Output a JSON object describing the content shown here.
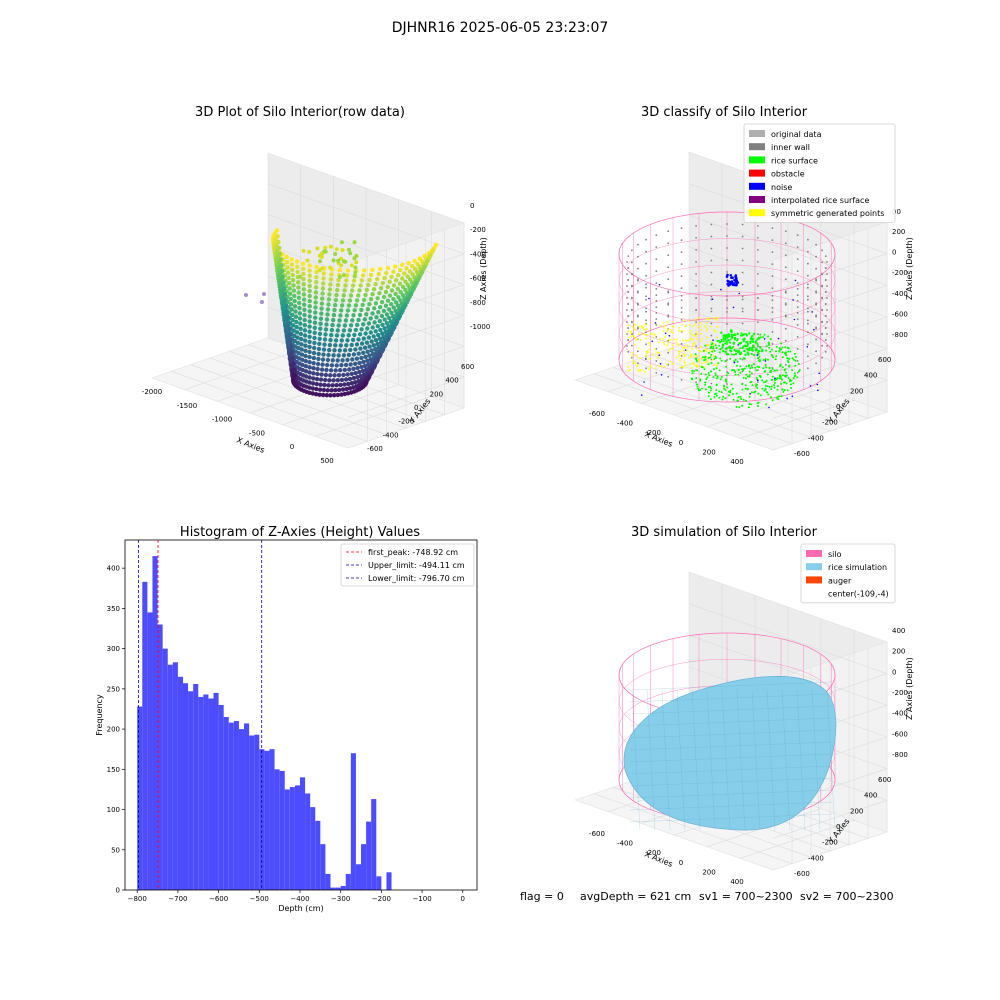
{
  "suptitle": "DJHNR16 2025-06-05 23:23:07",
  "footer": {
    "flag": "flag = 0",
    "avg_depth": "avgDepth = 621 cm",
    "sv1": "sv1 = 700~2300",
    "sv2": "sv2 = 700~2300"
  },
  "colors": {
    "original": "#b0b0b0",
    "inner_wall": "#808080",
    "rice_surface": "#00ff00",
    "obstacle": "#ff0000",
    "noise": "#0000ff",
    "interpolated": "#800080",
    "symmetric": "#ffff00",
    "silo": "#ff69b4",
    "rice_sim": "#87ceeb",
    "auger": "#ff4500",
    "hist_bar": "#4d4dff",
    "first_peak": "#ff0000",
    "limit": "#0000aa"
  },
  "chart_data": [
    {
      "type": "scatter3d",
      "title": "3D Plot of Silo Interior(row data)",
      "xlabel": "X Axies",
      "ylabel": "Y Axies",
      "zlabel": "Z Axies (Depth)",
      "x_ticks": [
        "-2000",
        "-1500",
        "-1000",
        "-500",
        "0",
        "500"
      ],
      "y_ticks": [
        "-600",
        "-400",
        "-200",
        "0",
        "200",
        "400",
        "600"
      ],
      "z_ticks": [
        "0",
        "-200",
        "-400",
        "-600",
        "-800",
        "-1000"
      ],
      "colormap": "viridis"
    },
    {
      "type": "scatter3d",
      "title": "3D classify of Silo Interior",
      "xlabel": "X Axies",
      "ylabel": "Y Axies",
      "zlabel": "Z Axies (Depth)",
      "x_ticks": [
        "-600",
        "-400",
        "-200",
        "0",
        "200",
        "400"
      ],
      "y_ticks": [
        "-600",
        "-400",
        "-200",
        "0",
        "200",
        "400",
        "600"
      ],
      "z_ticks": [
        "200",
        "0",
        "-200",
        "-400",
        "-600",
        "-800"
      ],
      "z_top_partial": "00",
      "legend_position": "top-right",
      "legend": [
        {
          "label": "original data",
          "color_key": "original"
        },
        {
          "label": "inner wall",
          "color_key": "inner_wall"
        },
        {
          "label": "rice surface",
          "color_key": "rice_surface"
        },
        {
          "label": "obstacle",
          "color_key": "obstacle"
        },
        {
          "label": "noise",
          "color_key": "noise"
        },
        {
          "label": "interpolated rice surface",
          "color_key": "interpolated"
        },
        {
          "label": "symmetric generated points",
          "color_key": "symmetric"
        }
      ]
    },
    {
      "type": "bar",
      "title": "Histogram of Z-Axies (Height) Values",
      "xlabel": "Depth (cm)",
      "ylabel": "Frequency",
      "xlim": [
        -830,
        35
      ],
      "ylim": [
        0,
        435
      ],
      "x_ticks": [
        -800,
        -700,
        -600,
        -500,
        -400,
        -300,
        -200,
        -100,
        0
      ],
      "y_ticks": [
        0,
        50,
        100,
        150,
        200,
        250,
        300,
        350,
        400
      ],
      "bin_start": -800,
      "bin_width": 12.5,
      "values": [
        228,
        383,
        345,
        415,
        330,
        300,
        280,
        283,
        265,
        257,
        247,
        256,
        240,
        243,
        238,
        245,
        230,
        215,
        208,
        210,
        200,
        207,
        192,
        193,
        175,
        173,
        175,
        150,
        148,
        125,
        128,
        130,
        140,
        120,
        103,
        86,
        57,
        20,
        3,
        3,
        5,
        20,
        170,
        32,
        57,
        85,
        113,
        17,
        0,
        22
      ],
      "legend_position": "top-right",
      "legend": [
        {
          "label": "first_peak: -748.92 cm",
          "value": -748.92,
          "color_key": "first_peak"
        },
        {
          "label": "Upper_limit: -494.11 cm",
          "value": -494.11,
          "color_key": "limit"
        },
        {
          "label": "Lower_limit: -796.70 cm",
          "value": -796.7,
          "color_key": "limit"
        }
      ]
    },
    {
      "type": "surface3d",
      "title": "3D simulation of Silo Interior",
      "xlabel": "X Axies",
      "ylabel": "Y Axies",
      "zlabel": "Z Axies (Depth)",
      "x_ticks": [
        "-600",
        "-400",
        "-200",
        "0",
        "200",
        "400"
      ],
      "y_ticks": [
        "-600",
        "-400",
        "-200",
        "0",
        "200",
        "400",
        "600"
      ],
      "z_ticks": [
        "400",
        "200",
        "0",
        "-200",
        "-400",
        "-600",
        "-800"
      ],
      "legend_position": "top-right",
      "legend": [
        {
          "label": "silo",
          "color_key": "silo"
        },
        {
          "label": "rice simulation",
          "color_key": "rice_sim"
        },
        {
          "label": "auger",
          "color_key": "auger"
        },
        {
          "label": "center(-109,-4)",
          "color_key": ""
        }
      ]
    }
  ]
}
